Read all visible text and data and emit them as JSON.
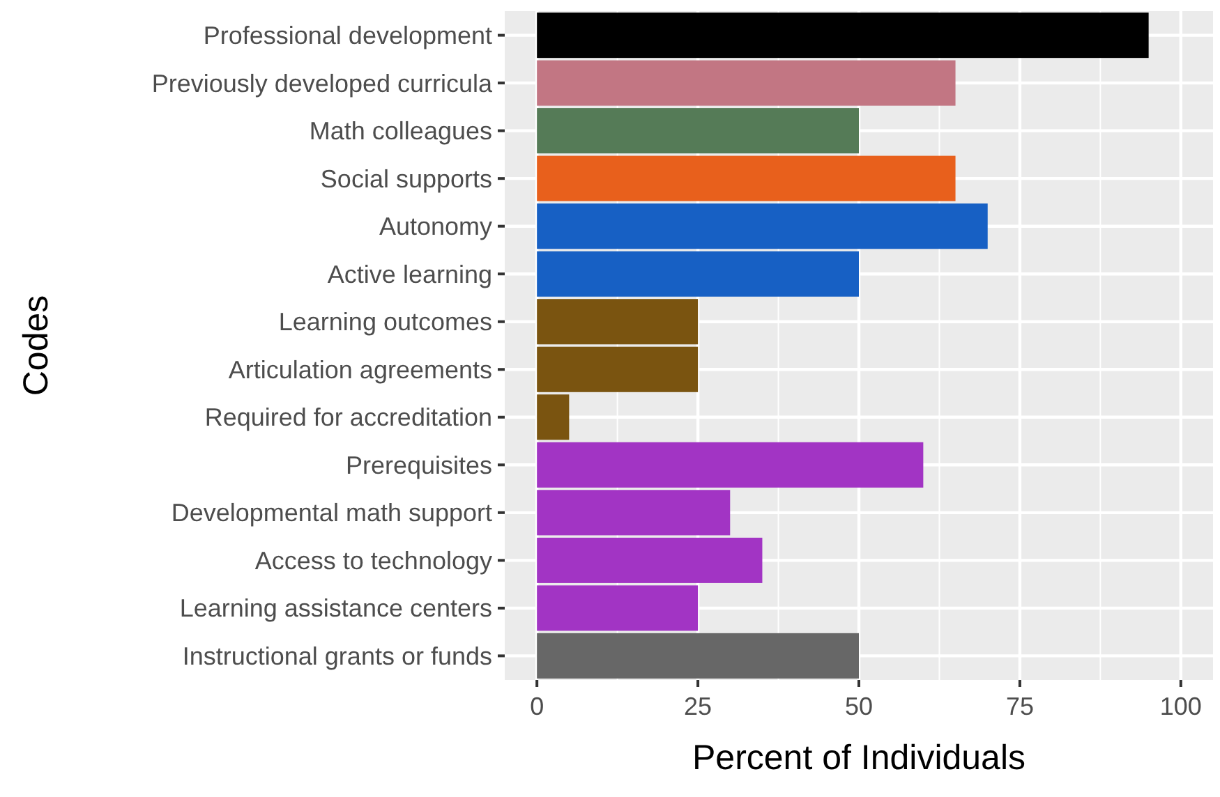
{
  "chart_data": {
    "type": "bar",
    "orientation": "horizontal",
    "xlabel": "Percent of Individuals",
    "ylabel": "Codes",
    "categories": [
      "Professional development",
      "Previously developed curricula",
      "Math colleagues",
      "Social supports",
      "Autonomy",
      "Active learning",
      "Learning outcomes",
      "Articulation agreements",
      "Required for accreditation",
      "Prerequisites",
      "Developmental math support",
      "Access to technology",
      "Learning assistance centers",
      "Instructional grants or funds"
    ],
    "values": [
      95,
      65,
      50,
      65,
      70,
      50,
      25,
      25,
      5,
      60,
      30,
      35,
      25,
      50
    ],
    "colors": [
      "#000000",
      "#c27683",
      "#557b57",
      "#e8601c",
      "#1760c4",
      "#1760c4",
      "#7a5410",
      "#7a5410",
      "#7a5410",
      "#a234c4",
      "#a234c4",
      "#a234c4",
      "#a234c4",
      "#676767"
    ],
    "xlim": [
      -5,
      105
    ],
    "xticks": [
      0,
      25,
      50,
      75,
      100
    ],
    "grid": true
  }
}
